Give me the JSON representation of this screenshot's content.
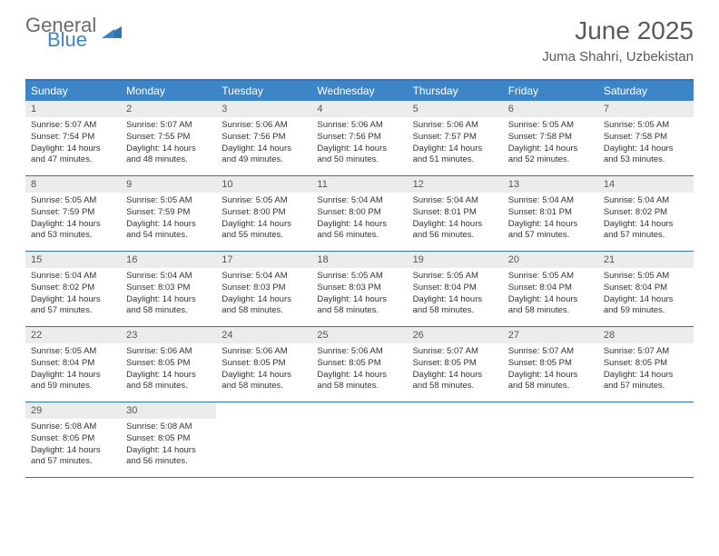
{
  "logo": {
    "word1": "General",
    "word2": "Blue"
  },
  "title": "June 2025",
  "location": "Juma Shahri, Uzbekistan",
  "colors": {
    "header_bg": "#3d85c6",
    "border": "#2e75b6",
    "daynum_bg": "#ececec",
    "text": "#333333",
    "title_text": "#5a5a5a"
  },
  "day_names": [
    "Sunday",
    "Monday",
    "Tuesday",
    "Wednesday",
    "Thursday",
    "Friday",
    "Saturday"
  ],
  "weeks": [
    [
      {
        "n": "1",
        "sr": "Sunrise: 5:07 AM",
        "ss": "Sunset: 7:54 PM",
        "dl": "Daylight: 14 hours and 47 minutes."
      },
      {
        "n": "2",
        "sr": "Sunrise: 5:07 AM",
        "ss": "Sunset: 7:55 PM",
        "dl": "Daylight: 14 hours and 48 minutes."
      },
      {
        "n": "3",
        "sr": "Sunrise: 5:06 AM",
        "ss": "Sunset: 7:56 PM",
        "dl": "Daylight: 14 hours and 49 minutes."
      },
      {
        "n": "4",
        "sr": "Sunrise: 5:06 AM",
        "ss": "Sunset: 7:56 PM",
        "dl": "Daylight: 14 hours and 50 minutes."
      },
      {
        "n": "5",
        "sr": "Sunrise: 5:06 AM",
        "ss": "Sunset: 7:57 PM",
        "dl": "Daylight: 14 hours and 51 minutes."
      },
      {
        "n": "6",
        "sr": "Sunrise: 5:05 AM",
        "ss": "Sunset: 7:58 PM",
        "dl": "Daylight: 14 hours and 52 minutes."
      },
      {
        "n": "7",
        "sr": "Sunrise: 5:05 AM",
        "ss": "Sunset: 7:58 PM",
        "dl": "Daylight: 14 hours and 53 minutes."
      }
    ],
    [
      {
        "n": "8",
        "sr": "Sunrise: 5:05 AM",
        "ss": "Sunset: 7:59 PM",
        "dl": "Daylight: 14 hours and 53 minutes."
      },
      {
        "n": "9",
        "sr": "Sunrise: 5:05 AM",
        "ss": "Sunset: 7:59 PM",
        "dl": "Daylight: 14 hours and 54 minutes."
      },
      {
        "n": "10",
        "sr": "Sunrise: 5:05 AM",
        "ss": "Sunset: 8:00 PM",
        "dl": "Daylight: 14 hours and 55 minutes."
      },
      {
        "n": "11",
        "sr": "Sunrise: 5:04 AM",
        "ss": "Sunset: 8:00 PM",
        "dl": "Daylight: 14 hours and 56 minutes."
      },
      {
        "n": "12",
        "sr": "Sunrise: 5:04 AM",
        "ss": "Sunset: 8:01 PM",
        "dl": "Daylight: 14 hours and 56 minutes."
      },
      {
        "n": "13",
        "sr": "Sunrise: 5:04 AM",
        "ss": "Sunset: 8:01 PM",
        "dl": "Daylight: 14 hours and 57 minutes."
      },
      {
        "n": "14",
        "sr": "Sunrise: 5:04 AM",
        "ss": "Sunset: 8:02 PM",
        "dl": "Daylight: 14 hours and 57 minutes."
      }
    ],
    [
      {
        "n": "15",
        "sr": "Sunrise: 5:04 AM",
        "ss": "Sunset: 8:02 PM",
        "dl": "Daylight: 14 hours and 57 minutes."
      },
      {
        "n": "16",
        "sr": "Sunrise: 5:04 AM",
        "ss": "Sunset: 8:03 PM",
        "dl": "Daylight: 14 hours and 58 minutes."
      },
      {
        "n": "17",
        "sr": "Sunrise: 5:04 AM",
        "ss": "Sunset: 8:03 PM",
        "dl": "Daylight: 14 hours and 58 minutes."
      },
      {
        "n": "18",
        "sr": "Sunrise: 5:05 AM",
        "ss": "Sunset: 8:03 PM",
        "dl": "Daylight: 14 hours and 58 minutes."
      },
      {
        "n": "19",
        "sr": "Sunrise: 5:05 AM",
        "ss": "Sunset: 8:04 PM",
        "dl": "Daylight: 14 hours and 58 minutes."
      },
      {
        "n": "20",
        "sr": "Sunrise: 5:05 AM",
        "ss": "Sunset: 8:04 PM",
        "dl": "Daylight: 14 hours and 58 minutes."
      },
      {
        "n": "21",
        "sr": "Sunrise: 5:05 AM",
        "ss": "Sunset: 8:04 PM",
        "dl": "Daylight: 14 hours and 59 minutes."
      }
    ],
    [
      {
        "n": "22",
        "sr": "Sunrise: 5:05 AM",
        "ss": "Sunset: 8:04 PM",
        "dl": "Daylight: 14 hours and 59 minutes."
      },
      {
        "n": "23",
        "sr": "Sunrise: 5:06 AM",
        "ss": "Sunset: 8:05 PM",
        "dl": "Daylight: 14 hours and 58 minutes."
      },
      {
        "n": "24",
        "sr": "Sunrise: 5:06 AM",
        "ss": "Sunset: 8:05 PM",
        "dl": "Daylight: 14 hours and 58 minutes."
      },
      {
        "n": "25",
        "sr": "Sunrise: 5:06 AM",
        "ss": "Sunset: 8:05 PM",
        "dl": "Daylight: 14 hours and 58 minutes."
      },
      {
        "n": "26",
        "sr": "Sunrise: 5:07 AM",
        "ss": "Sunset: 8:05 PM",
        "dl": "Daylight: 14 hours and 58 minutes."
      },
      {
        "n": "27",
        "sr": "Sunrise: 5:07 AM",
        "ss": "Sunset: 8:05 PM",
        "dl": "Daylight: 14 hours and 58 minutes."
      },
      {
        "n": "28",
        "sr": "Sunrise: 5:07 AM",
        "ss": "Sunset: 8:05 PM",
        "dl": "Daylight: 14 hours and 57 minutes."
      }
    ],
    [
      {
        "n": "29",
        "sr": "Sunrise: 5:08 AM",
        "ss": "Sunset: 8:05 PM",
        "dl": "Daylight: 14 hours and 57 minutes."
      },
      {
        "n": "30",
        "sr": "Sunrise: 5:08 AM",
        "ss": "Sunset: 8:05 PM",
        "dl": "Daylight: 14 hours and 56 minutes."
      },
      null,
      null,
      null,
      null,
      null
    ]
  ]
}
